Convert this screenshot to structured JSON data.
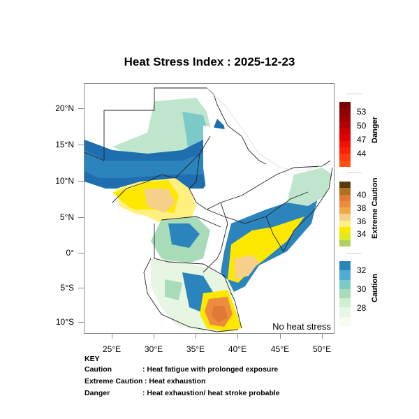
{
  "title": "Heat Stress Index : 2025-12-23",
  "map": {
    "region": "East Africa",
    "no_heat_stress_label": "No heat stress",
    "y_axis_labels": [
      "20°N",
      "15°N",
      "10°N",
      "5°N",
      "0°",
      "5°S",
      "10°S"
    ],
    "x_axis_labels": [
      "25°E",
      "30°E",
      "35°E",
      "40°E",
      "45°E",
      "50°E"
    ]
  },
  "legend": {
    "danger": {
      "title": "Danger",
      "labels": [
        "53",
        "50",
        "47",
        "44"
      ],
      "colors": [
        "#7a0000",
        "#8e0000",
        "#a10000",
        "#b60000",
        "#cc0000",
        "#e00000",
        "#f21000",
        "#ff2000",
        "#ff3a10",
        "#ff5010"
      ]
    },
    "extreme_caution": {
      "title": "Extreme Caution",
      "labels": [
        "40",
        "38",
        "36",
        "34"
      ],
      "colors": [
        "#5c3a10",
        "#b0701e",
        "#e07838",
        "#ec8c3c",
        "#f0a848",
        "#f6d088",
        "#fff080",
        "#ffe800",
        "#e0ea20",
        "#b0d060"
      ]
    },
    "caution": {
      "title": "Caution",
      "labels": [
        "32",
        "30",
        "28"
      ],
      "colors": [
        "#2c84bc",
        "#50acd4",
        "#7ccac8",
        "#a8dcb8",
        "#d0eed0",
        "#e6f6e2",
        "#f6fcf0"
      ]
    }
  },
  "key": {
    "heading": "KEY",
    "rows": [
      {
        "category": "Caution",
        "description": ": Heat fatigue with prolonged exposure"
      },
      {
        "category": "Extreme Caution",
        "description": " : Heat exhaustion"
      },
      {
        "category": "Danger",
        "description": ": Heat exhaustion/ heat stroke probable"
      }
    ]
  }
}
